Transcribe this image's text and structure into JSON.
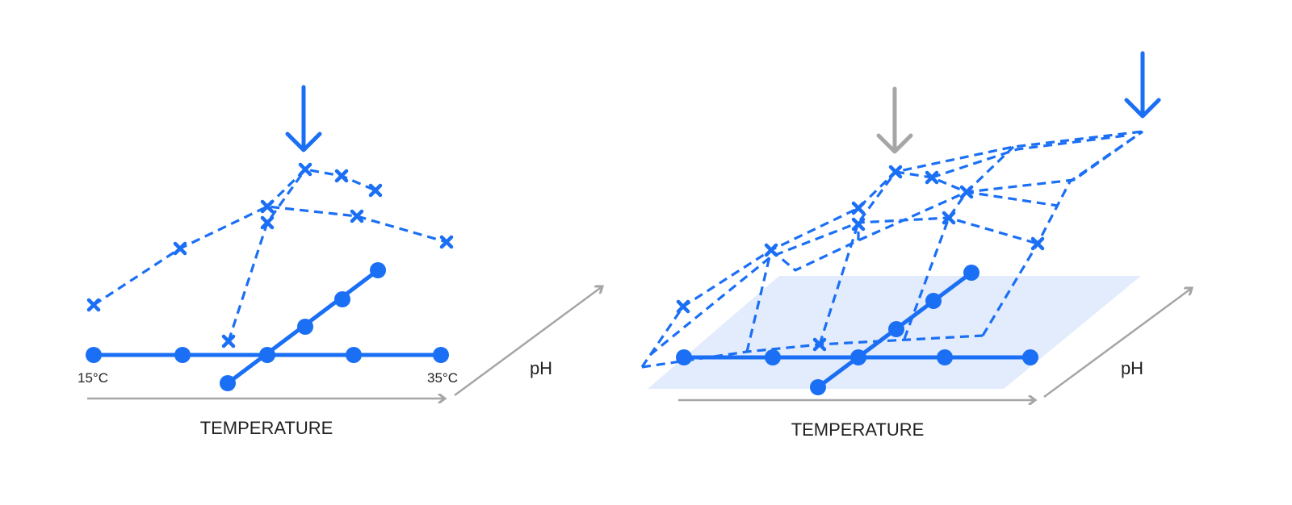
{
  "colors": {
    "accent": "#1a6ff5",
    "axis": "#a6a6a6",
    "plane": "#e3ecfd",
    "text": "#222222"
  },
  "left_panel": {
    "temp_min_label": "15°C",
    "temp_max_label": "35°C",
    "x_axis_label": "TEMPERATURE",
    "depth_axis_label": "pH"
  },
  "right_panel": {
    "x_axis_label": "TEMPERATURE",
    "depth_axis_label": "pH"
  }
}
